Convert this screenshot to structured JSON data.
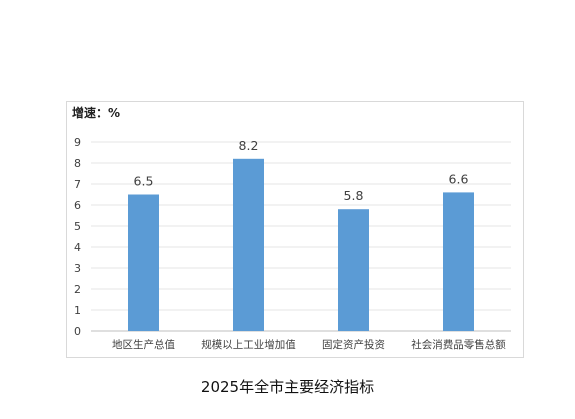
{
  "caption": "2025年全市主要经济指标",
  "chart_data": {
    "type": "bar",
    "unit_label": "增速：%",
    "categories": [
      "地区生产总值",
      "规模以上工业增加值",
      "固定资产投资",
      "社会消费品零售总额"
    ],
    "values": [
      6.5,
      8.2,
      5.8,
      6.6
    ],
    "value_labels": [
      "6.5",
      "8.2",
      "5.8",
      "6.6"
    ],
    "yticks": [
      "0",
      "1",
      "2",
      "3",
      "4",
      "5",
      "6",
      "7",
      "8",
      "9"
    ],
    "ylim": [
      0,
      9
    ],
    "grid": true,
    "bar_color": "#5b9bd5",
    "grid_color": "#e6e6e6",
    "axis_color": "#bfbfbf"
  }
}
